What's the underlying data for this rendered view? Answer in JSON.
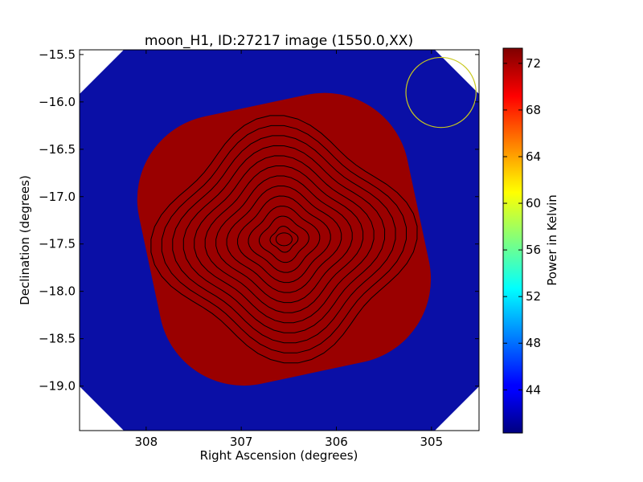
{
  "chart_data": {
    "type": "heatmap",
    "title": "moon_H1, ID:27217 image (1550.0,XX)",
    "xlabel": "Right Ascension (degrees)",
    "ylabel": "Declination (degrees)",
    "xlim": [
      308.7,
      304.5
    ],
    "ylim": [
      -19.47,
      -15.45
    ],
    "x_ticks": [
      {
        "value": 308,
        "label": "308"
      },
      {
        "value": 307,
        "label": "307"
      },
      {
        "value": 306,
        "label": "306"
      },
      {
        "value": 305,
        "label": "305"
      }
    ],
    "y_ticks": [
      {
        "value": -15.5,
        "label": "−15.5"
      },
      {
        "value": -16.0,
        "label": "−16.0"
      },
      {
        "value": -16.5,
        "label": "−16.5"
      },
      {
        "value": -17.0,
        "label": "−17.0"
      },
      {
        "value": -17.5,
        "label": "−17.5"
      },
      {
        "value": -18.0,
        "label": "−18.0"
      },
      {
        "value": -18.5,
        "label": "−18.5"
      },
      {
        "value": -19.0,
        "label": "−19.0"
      }
    ],
    "colorbar": {
      "label": "Power in Kelvin",
      "range": [
        40.3,
        73.3
      ],
      "ticks": [
        {
          "value": 44,
          "label": "44"
        },
        {
          "value": 48,
          "label": "48"
        },
        {
          "value": 52,
          "label": "52"
        },
        {
          "value": 56,
          "label": "56"
        },
        {
          "value": 60,
          "label": "60"
        },
        {
          "value": 64,
          "label": "64"
        },
        {
          "value": 68,
          "label": "68"
        },
        {
          "value": 72,
          "label": "72"
        }
      ],
      "colormap": "jet"
    },
    "source": {
      "ra": 306.55,
      "dec": -17.45,
      "peak": 73.0,
      "background": 40.3
    },
    "contour_count": 12,
    "beam_circle": {
      "ra": 304.9,
      "dec": -15.9,
      "radius_deg": 0.37,
      "color": "#c8c81e"
    },
    "grid": false,
    "legend": "none"
  }
}
